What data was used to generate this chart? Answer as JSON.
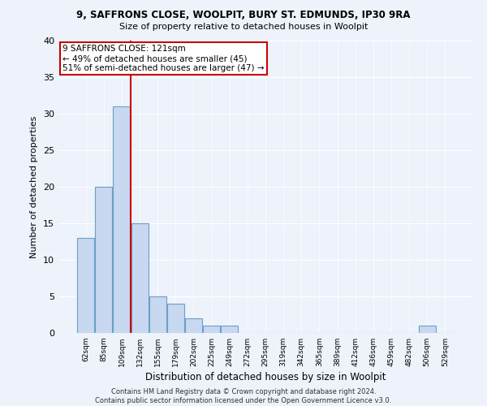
{
  "title1": "9, SAFFRONS CLOSE, WOOLPIT, BURY ST. EDMUNDS, IP30 9RA",
  "title2": "Size of property relative to detached houses in Woolpit",
  "xlabel": "Distribution of detached houses by size in Woolpit",
  "ylabel": "Number of detached properties",
  "bar_color": "#c8d8f0",
  "bar_edge_color": "#6aa0c8",
  "categories": [
    "62sqm",
    "85sqm",
    "109sqm",
    "132sqm",
    "155sqm",
    "179sqm",
    "202sqm",
    "225sqm",
    "249sqm",
    "272sqm",
    "295sqm",
    "319sqm",
    "342sqm",
    "365sqm",
    "389sqm",
    "412sqm",
    "436sqm",
    "459sqm",
    "482sqm",
    "506sqm",
    "529sqm"
  ],
  "values": [
    13,
    20,
    31,
    15,
    5,
    4,
    2,
    1,
    1,
    0,
    0,
    0,
    0,
    0,
    0,
    0,
    0,
    0,
    0,
    1,
    0
  ],
  "ylim": [
    0,
    40
  ],
  "yticks": [
    0,
    5,
    10,
    15,
    20,
    25,
    30,
    35,
    40
  ],
  "red_line_x": 2.5,
  "annotation_text": "9 SAFFRONS CLOSE: 121sqm\n← 49% of detached houses are smaller (45)\n51% of semi-detached houses are larger (47) →",
  "annotation_box_color": "#ffffff",
  "annotation_border_color": "#cc0000",
  "red_line_color": "#cc0000",
  "footer1": "Contains HM Land Registry data © Crown copyright and database right 2024.",
  "footer2": "Contains public sector information licensed under the Open Government Licence v3.0.",
  "background_color": "#edf2fb",
  "grid_color": "#ffffff"
}
